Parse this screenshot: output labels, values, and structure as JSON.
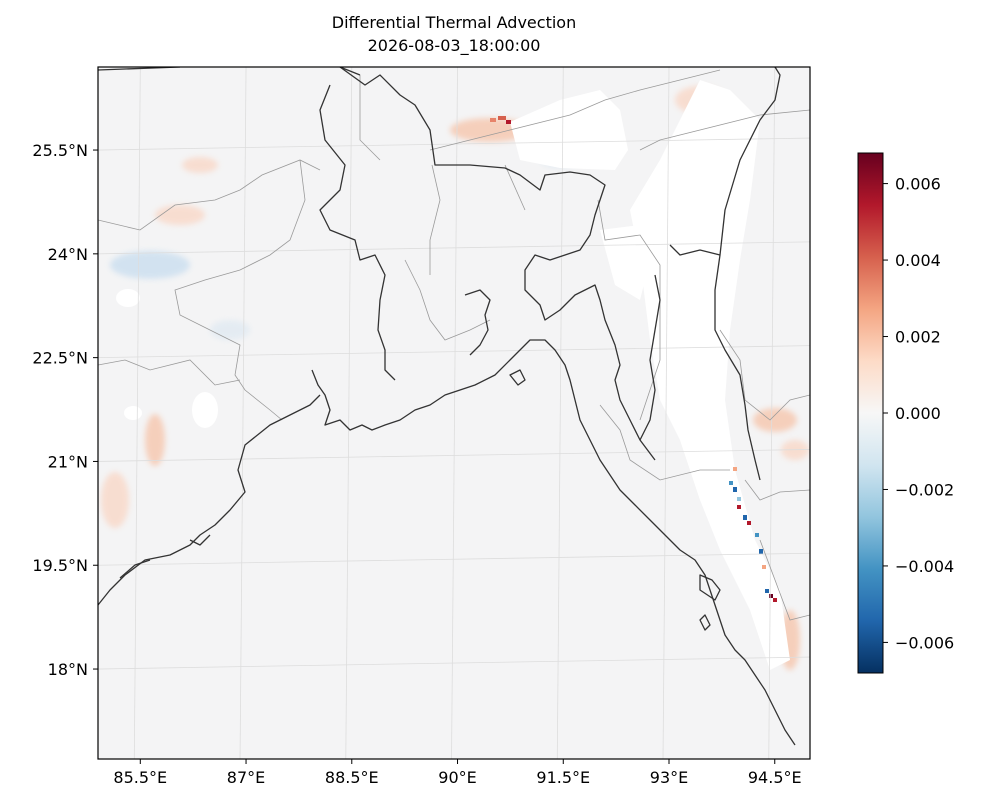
{
  "title": "Differential Thermal Advection",
  "subtitle": "2026-08-03_18:00:00",
  "map": {
    "lon_range": [
      84.9,
      95.0
    ],
    "lat_range": [
      16.7,
      26.7
    ],
    "lon_ticks": [
      85.5,
      87,
      88.5,
      90,
      91.5,
      93,
      94.5
    ],
    "lon_tick_labels": [
      "85.5°E",
      "87°E",
      "88.5°E",
      "90°E",
      "91.5°E",
      "93°E",
      "94.5°E"
    ],
    "lat_ticks": [
      25.5,
      24,
      22.5,
      21,
      19.5,
      18
    ],
    "lat_tick_labels": [
      "25.5°N",
      "24°N",
      "22.5°N",
      "21°N",
      "19.5°N",
      "18°N"
    ],
    "field": "Differential Thermal Advection",
    "field_background": "#f4f4f4",
    "masked_color": "#ffffff",
    "coastline_color": "#333333",
    "boundary_color": "#999999",
    "gridline_color": "#dddddd"
  },
  "colorbar": {
    "colormap": "RdBu_r",
    "vmin": -0.0068,
    "vmax": 0.0068,
    "ticks": [
      0.006,
      0.004,
      0.002,
      0.0,
      -0.002,
      -0.004,
      -0.006
    ],
    "tick_labels": [
      "0.006",
      "0.004",
      "0.002",
      "0.000",
      "−0.002",
      "−0.004",
      "−0.006"
    ],
    "stops": [
      "#053061",
      "#2166ac",
      "#4393c3",
      "#92c5de",
      "#d1e5f0",
      "#f7f7f7",
      "#fddbc7",
      "#f4a582",
      "#d6604d",
      "#b2182b",
      "#67001f"
    ]
  }
}
